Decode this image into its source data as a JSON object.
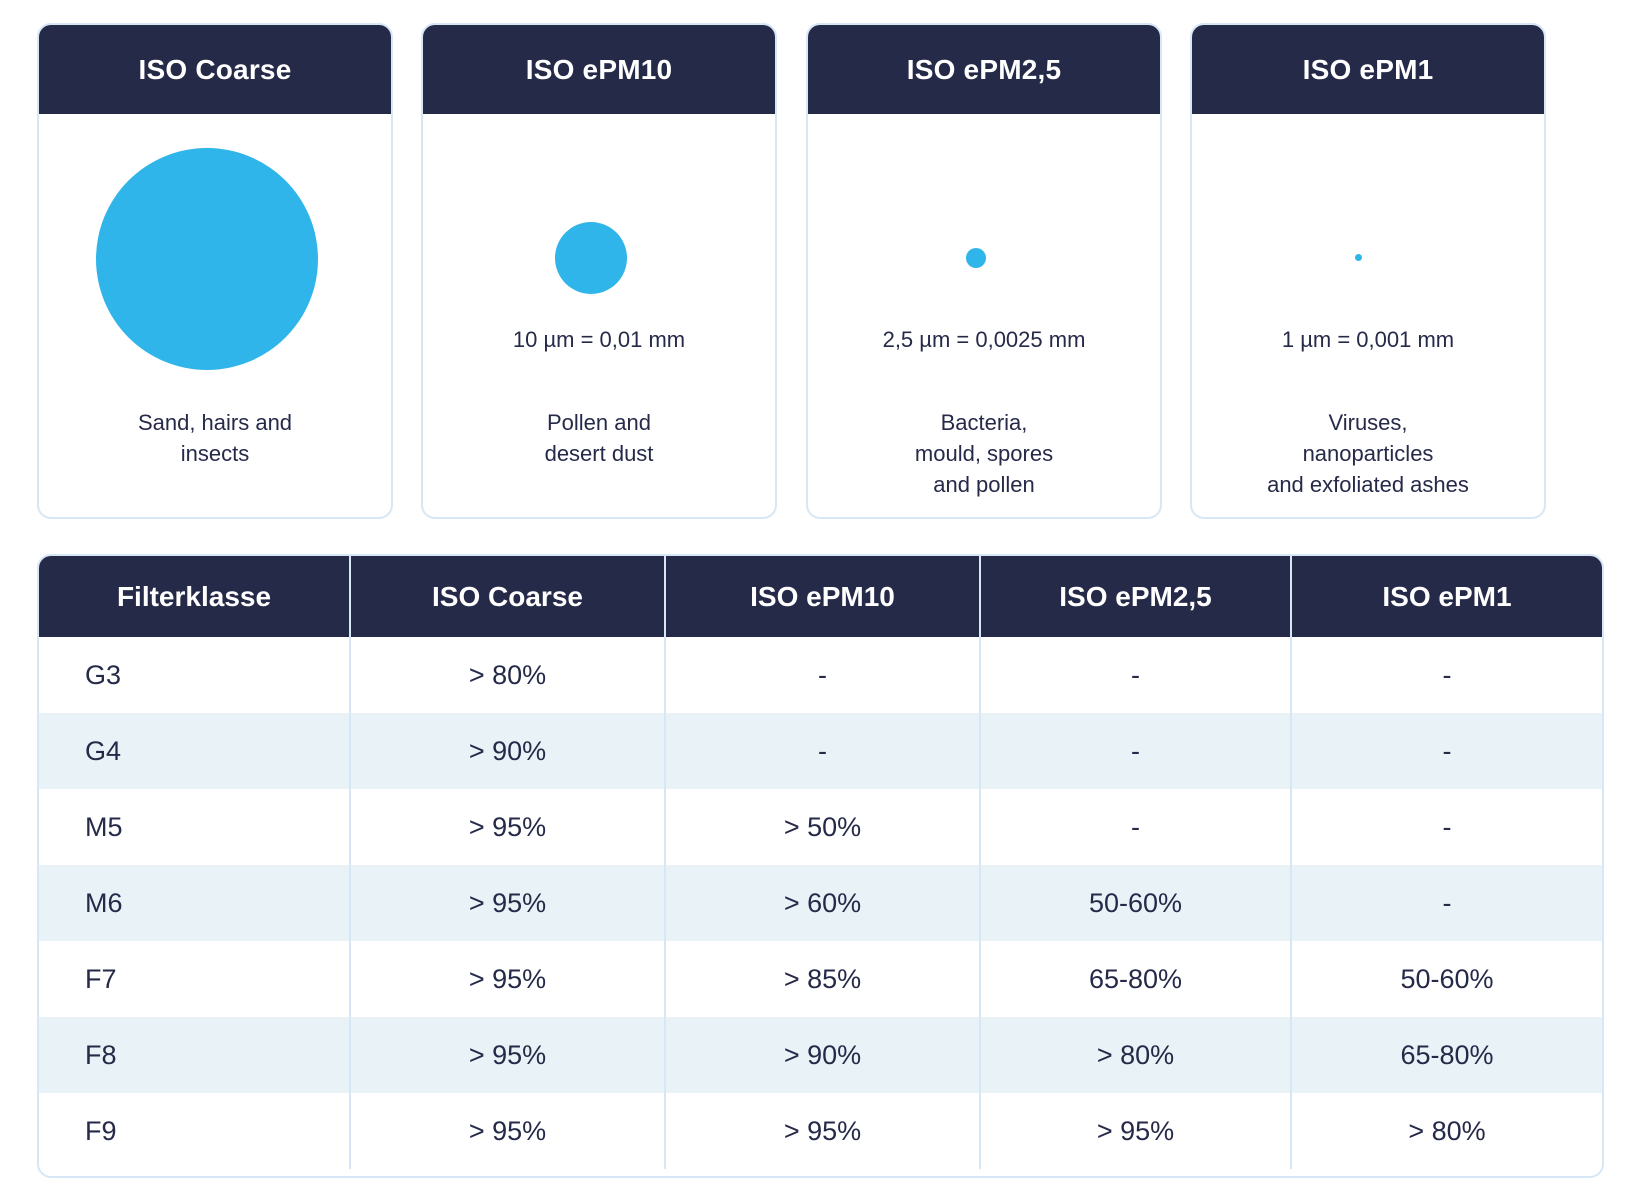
{
  "cards": [
    {
      "title": "ISO Coarse",
      "size": "",
      "description": [
        "Sand, hairs and",
        "insects"
      ]
    },
    {
      "title": "ISO ePM10",
      "size": "10 µm = 0,01 mm",
      "description": [
        "Pollen and",
        "desert dust"
      ]
    },
    {
      "title": "ISO ePM2,5",
      "size": "2,5 µm = 0,0025 mm",
      "description": [
        "Bacteria,",
        "mould, spores",
        "and pollen"
      ]
    },
    {
      "title": "ISO ePM1",
      "size": "1 µm = 0,001 mm",
      "description": [
        "Viruses,",
        "nanoparticles",
        "and exfoliated ashes"
      ]
    }
  ],
  "particle_color": "#30b5ea",
  "header_color": "#262a49",
  "table": {
    "headers": [
      "Filterklasse",
      "ISO Coarse",
      "ISO ePM10",
      "ISO ePM2,5",
      "ISO ePM1"
    ],
    "rows": [
      [
        "G3",
        "> 80%",
        "-",
        "-",
        "-"
      ],
      [
        "G4",
        "> 90%",
        "-",
        "-",
        "-"
      ],
      [
        "M5",
        "> 95%",
        "> 50%",
        "-",
        "-"
      ],
      [
        "M6",
        "> 95%",
        "> 60%",
        "50-60%",
        "-"
      ],
      [
        "F7",
        "> 95%",
        "> 85%",
        "65-80%",
        "50-60%"
      ],
      [
        "F8",
        "> 95%",
        "> 90%",
        "> 80%",
        "65-80%"
      ],
      [
        "F9",
        "> 95%",
        "> 95%",
        "> 95%",
        "> 80%"
      ]
    ]
  }
}
